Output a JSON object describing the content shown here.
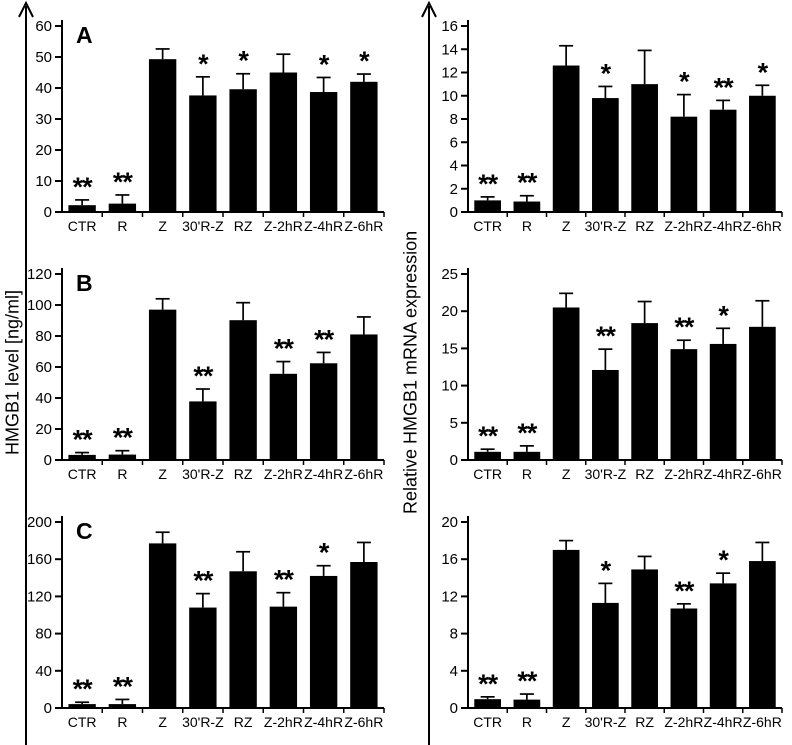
{
  "figure": {
    "left_axis_label": "HMGB1 level [ng/ml]",
    "right_axis_label": "Relative HMGB1 mRNA expression",
    "bar_color": "#000000",
    "text_color": "#000000"
  },
  "chart_data": [
    {
      "id": "panel-A-left",
      "type": "bar",
      "panel_letter": "A",
      "ylabel": "HMGB1 level [ng/ml]",
      "categories": [
        "CTR",
        "R",
        "Z",
        "30'R-Z",
        "RZ",
        "Z-2hR",
        "Z-4hR",
        "Z-6hR"
      ],
      "values": [
        2.2,
        2.7,
        49.3,
        37.6,
        39.6,
        45.0,
        38.7,
        42.0
      ],
      "errors": [
        1.7,
        2.8,
        3.3,
        6.0,
        5.0,
        5.9,
        4.7,
        2.5
      ],
      "significance": [
        "**",
        "**",
        "",
        "*",
        "*",
        "",
        "*",
        "*"
      ],
      "ylim": [
        0,
        60
      ],
      "ytick_step": 10,
      "grid": false,
      "legend": "none"
    },
    {
      "id": "panel-A-right",
      "type": "bar",
      "panel_letter": "",
      "ylabel": "Relative HMGB1 mRNA expression",
      "categories": [
        "CTR",
        "R",
        "Z",
        "30'R-Z",
        "RZ",
        "Z-2hR",
        "Z-4hR",
        "Z-6hR"
      ],
      "values": [
        1.0,
        0.9,
        12.6,
        9.8,
        11.0,
        8.2,
        8.8,
        10.0
      ],
      "errors": [
        0.3,
        0.5,
        1.7,
        1.0,
        2.9,
        1.9,
        0.8,
        0.9
      ],
      "significance": [
        "**",
        "**",
        "",
        "*",
        "",
        "*",
        "**",
        "*"
      ],
      "ylim": [
        0,
        16
      ],
      "ytick_step": 2,
      "grid": false,
      "legend": "none"
    },
    {
      "id": "panel-B-left",
      "type": "bar",
      "panel_letter": "B",
      "ylabel": "HMGB1 level [ng/ml]",
      "categories": [
        "CTR",
        "R",
        "Z",
        "30'R-Z",
        "RZ",
        "Z-2hR",
        "Z-4hR",
        "Z-6hR"
      ],
      "values": [
        3.3,
        3.5,
        97.0,
        37.8,
        90.2,
        55.6,
        62.4,
        81.0
      ],
      "errors": [
        1.5,
        2.5,
        7.0,
        8.0,
        11.3,
        7.9,
        7.0,
        11.3
      ],
      "significance": [
        "**",
        "**",
        "",
        "**",
        "",
        "**",
        "**",
        ""
      ],
      "ylim": [
        0,
        120
      ],
      "ytick_step": 20,
      "grid": false,
      "legend": "none"
    },
    {
      "id": "panel-B-right",
      "type": "bar",
      "panel_letter": "",
      "ylabel": "Relative HMGB1 mRNA expression",
      "categories": [
        "CTR",
        "R",
        "Z",
        "30'R-Z",
        "RZ",
        "Z-2hR",
        "Z-4hR",
        "Z-6hR"
      ],
      "values": [
        1.1,
        1.1,
        20.5,
        12.1,
        18.4,
        14.9,
        15.6,
        17.9
      ],
      "errors": [
        0.35,
        0.8,
        1.9,
        2.8,
        2.9,
        1.2,
        2.1,
        3.5
      ],
      "significance": [
        "**",
        "**",
        "",
        "**",
        "",
        "**",
        "*",
        ""
      ],
      "ylim": [
        0,
        25
      ],
      "ytick_step": 5,
      "grid": false,
      "legend": "none"
    },
    {
      "id": "panel-C-left",
      "type": "bar",
      "panel_letter": "C",
      "ylabel": "HMGB1 level [ng/ml]",
      "categories": [
        "CTR",
        "R",
        "Z",
        "30'R-Z",
        "RZ",
        "Z-2hR",
        "Z-4hR",
        "Z-6hR"
      ],
      "values": [
        4.2,
        4.2,
        177,
        108,
        147,
        109,
        142,
        157
      ],
      "errors": [
        2.0,
        5.0,
        12,
        15,
        21,
        15,
        11,
        21
      ],
      "significance": [
        "**",
        "**",
        "",
        "**",
        "",
        "**",
        "*",
        ""
      ],
      "ylim": [
        0,
        200
      ],
      "ytick_step": 40,
      "grid": false,
      "legend": "none"
    },
    {
      "id": "panel-C-right",
      "type": "bar",
      "panel_letter": "",
      "ylabel": "Relative HMGB1 mRNA expression",
      "categories": [
        "CTR",
        "R",
        "Z",
        "30'R-Z",
        "RZ",
        "Z-2hR",
        "Z-4hR",
        "Z-6hR"
      ],
      "values": [
        0.95,
        0.9,
        17.0,
        11.3,
        14.9,
        10.7,
        13.4,
        15.8
      ],
      "errors": [
        0.25,
        0.6,
        1.0,
        2.1,
        1.4,
        0.5,
        1.1,
        2.0
      ],
      "significance": [
        "**",
        "**",
        "",
        "*",
        "",
        "**",
        "*",
        ""
      ],
      "ylim": [
        0,
        20
      ],
      "ytick_step": 4,
      "grid": false,
      "legend": "none"
    }
  ]
}
